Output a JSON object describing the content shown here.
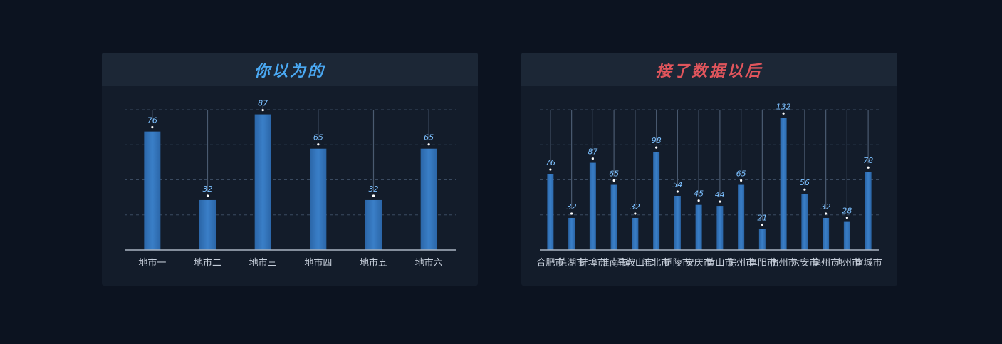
{
  "colors": {
    "background": "#0c1320",
    "bar": "#2f6fb6",
    "value_label": "#7cc0ff",
    "title_left": "#4aa8f2",
    "title_right": "#e0555c"
  },
  "chart_data": [
    {
      "type": "bar",
      "title": "你以为的",
      "categories": [
        "地市一",
        "地市二",
        "地市三",
        "地市四",
        "地市五",
        "地市六"
      ],
      "values": [
        76,
        32,
        87,
        65,
        32,
        65
      ],
      "ylim": [
        0,
        90
      ],
      "grid": true,
      "xlabel": "",
      "ylabel": ""
    },
    {
      "type": "bar",
      "title": "接了数据以后",
      "categories": [
        "合肥市",
        "芜湖市",
        "蚌埠市",
        "淮南市",
        "马鞍山市",
        "淮北市",
        "铜陵市",
        "安庆市",
        "黄山市",
        "滁州市",
        "阜阳市",
        "宿州市",
        "六安市",
        "亳州市",
        "池州市",
        "宣城市"
      ],
      "values": [
        76,
        32,
        87,
        65,
        32,
        98,
        54,
        45,
        44,
        65,
        21,
        132,
        56,
        32,
        28,
        78
      ],
      "ylim": [
        0,
        140
      ],
      "grid": true,
      "xlabel": "",
      "ylabel": ""
    }
  ]
}
